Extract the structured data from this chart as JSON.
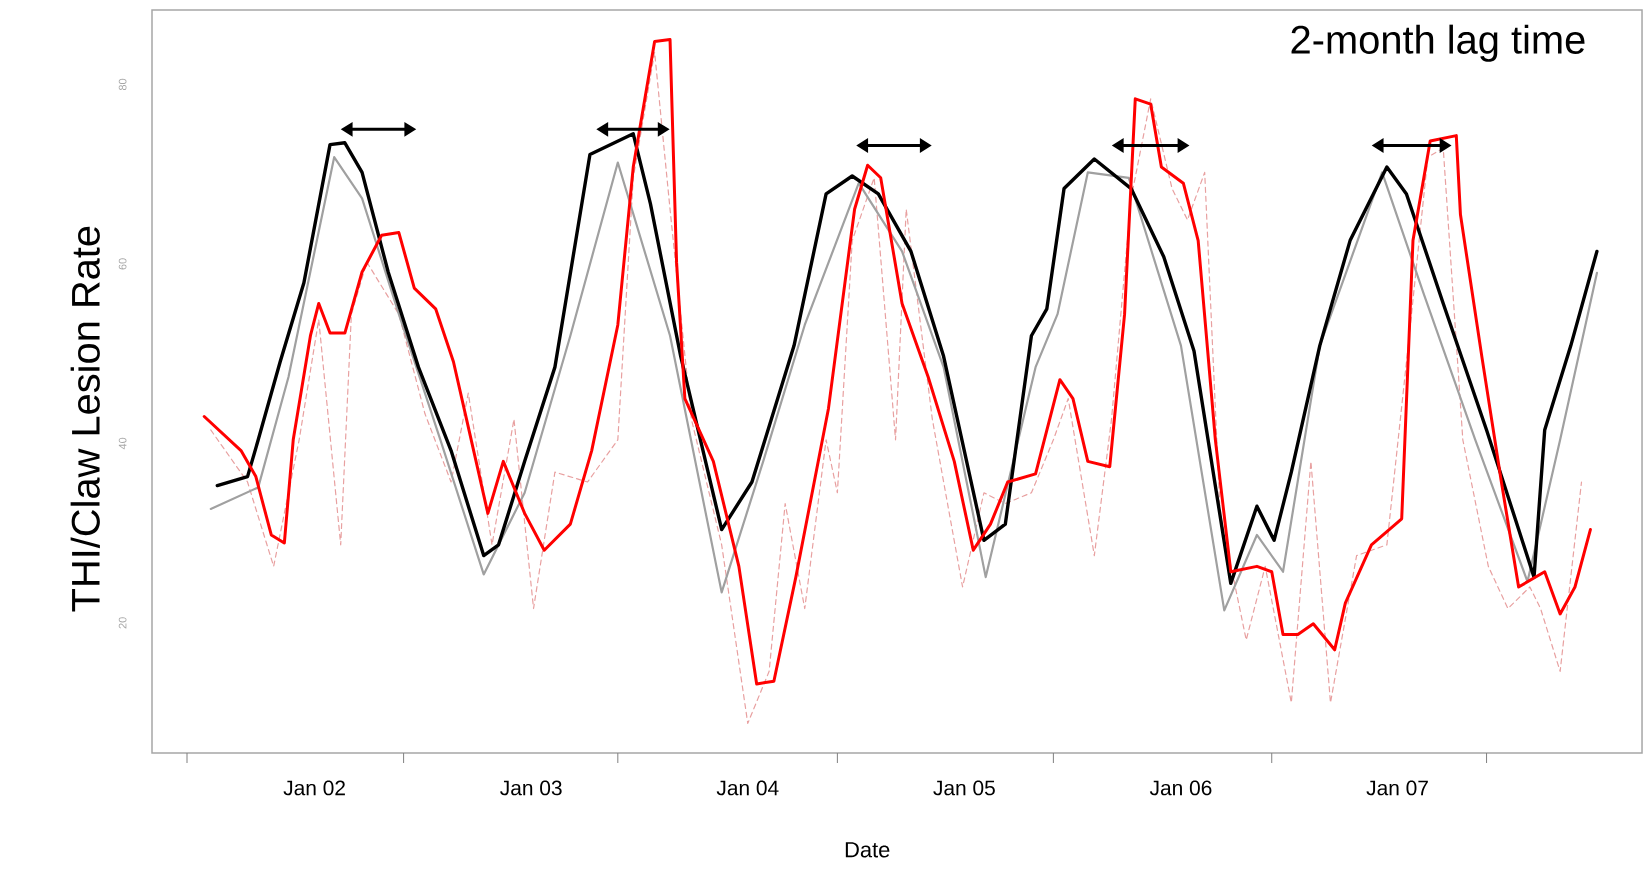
{
  "chart_data": {
    "type": "line",
    "xlabel": "Date",
    "ylabel": "THI/Claw Lesion Rate",
    "annotations": [
      "2-month lag time"
    ],
    "xlim": [
      "2001-04-02",
      "2008-02-17"
    ],
    "ylim": [
      5.5,
      88.3
    ],
    "xticks": [
      {
        "value": "2001-05-31",
        "label": null
      },
      {
        "value": "2002-01-01",
        "label": "Jan 02"
      },
      {
        "value": "2002-05-31",
        "label": null
      },
      {
        "value": "2003-01-01",
        "label": "Jan 03"
      },
      {
        "value": "2003-05-27",
        "label": null
      },
      {
        "value": "2004-01-01",
        "label": "Jan 04"
      },
      {
        "value": "2004-05-31",
        "label": null
      },
      {
        "value": "2005-01-01",
        "label": "Jan 05"
      },
      {
        "value": "2005-05-31",
        "label": null
      },
      {
        "value": "2006-01-01",
        "label": "Jan 06"
      },
      {
        "value": "2006-06-03",
        "label": null
      },
      {
        "value": "2007-01-01",
        "label": "Jan 07"
      },
      {
        "value": "2007-05-31",
        "label": null
      }
    ],
    "yticks": [
      20,
      40,
      60,
      80
    ],
    "marker": "none",
    "series": [
      {
        "color": "#e8a0a0",
        "line_style": "dashed",
        "x": [
          "2001-07-10",
          "2001-09-10",
          "2001-10-24",
          "2001-12-06",
          "2002-01-08",
          "2002-02-14",
          "2002-03-04",
          "2002-03-30",
          "2002-05-23",
          "2002-07-06",
          "2002-08-19",
          "2002-09-17",
          "2002-10-27",
          "2002-12-03",
          "2003-01-05",
          "2003-02-10",
          "2003-04-06",
          "2003-05-27",
          "2003-06-22",
          "2003-07-28",
          "2003-08-23",
          "2003-09-28",
          "2003-11-18",
          "2004-01-01",
          "2004-02-06",
          "2004-03-04",
          "2004-04-06",
          "2004-05-12",
          "2004-05-31",
          "2004-06-25",
          "2004-08-01",
          "2004-09-06",
          "2004-09-24",
          "2004-11-07",
          "2004-12-28",
          "2005-02-03",
          "2005-03-11",
          "2005-04-24",
          "2005-05-31",
          "2005-06-25",
          "2005-08-08",
          "2005-09-06",
          "2005-10-09",
          "2005-11-11",
          "2005-12-17",
          "2006-01-12",
          "2006-02-10",
          "2006-03-08",
          "2006-04-21",
          "2006-05-23",
          "2006-07-06",
          "2006-08-08",
          "2006-09-10",
          "2006-10-24",
          "2006-12-14",
          "2007-01-19",
          "2007-02-21",
          "2007-03-19",
          "2007-04-21",
          "2007-06-03",
          "2007-07-06",
          "2007-08-12",
          "2007-08-30",
          "2007-10-02",
          "2007-11-07"
        ],
        "values": [
          41.5,
          35.7,
          26.3,
          40.4,
          53.8,
          28.7,
          54.4,
          60.2,
          54.4,
          43.3,
          35.7,
          45.6,
          28.7,
          42.7,
          21.6,
          36.8,
          35.7,
          40.4,
          69.6,
          83.6,
          66.1,
          42.7,
          28.7,
          8.8,
          14.6,
          33.3,
          21.6,
          40.4,
          34.5,
          62.6,
          69.6,
          40.4,
          66.1,
          42.7,
          24,
          34.5,
          33.3,
          34.5,
          40.4,
          45,
          27.5,
          42.7,
          67.3,
          78.4,
          68.4,
          64.9,
          70.2,
          32.2,
          18.1,
          26.3,
          11.1,
          38,
          11.1,
          27.5,
          28.7,
          50.9,
          71.9,
          72.9,
          40.4,
          26.3,
          21.6,
          24,
          21.6,
          14.6,
          35.7
        ]
      },
      {
        "color": "#a0a0a0",
        "x": [
          "2001-07-10",
          "2001-09-28",
          "2001-11-18",
          "2002-02-03",
          "2002-03-22",
          "2002-05-23",
          "2002-08-01",
          "2002-10-13",
          "2002-12-21",
          "2003-03-08",
          "2003-05-27",
          "2003-08-23",
          "2003-11-18",
          "2004-01-27",
          "2004-04-06",
          "2004-07-06",
          "2004-09-17",
          "2004-11-26",
          "2005-02-06",
          "2005-05-01",
          "2005-06-07",
          "2005-07-28",
          "2005-10-05",
          "2006-01-01",
          "2006-03-15",
          "2006-05-09",
          "2006-06-22",
          "2006-08-23",
          "2006-12-06",
          "2007-02-14",
          "2007-05-12",
          "2007-08-08",
          "2007-10-02",
          "2007-12-03"
        ],
        "values": [
          32.7,
          35.1,
          47.4,
          71.9,
          67.3,
          54.4,
          40.4,
          25.4,
          34.5,
          52,
          71.3,
          52,
          23.4,
          38,
          53.2,
          69,
          61.4,
          48.5,
          25.1,
          48.5,
          54.4,
          70.2,
          69.6,
          50.9,
          21.4,
          29.8,
          25.7,
          50.9,
          70.2,
          56.7,
          40.4,
          24.6,
          40.4,
          59
        ]
      },
      {
        "color": "#000000",
        "x": [
          "2001-07-21",
          "2001-09-10",
          "2001-09-28",
          "2001-11-04",
          "2001-12-14",
          "2002-01-27",
          "2002-02-21",
          "2002-03-22",
          "2002-05-05",
          "2002-06-25",
          "2002-08-19",
          "2002-10-13",
          "2002-11-07",
          "2002-12-21",
          "2003-02-10",
          "2003-04-10",
          "2003-06-22",
          "2003-07-21",
          "2003-09-10",
          "2003-11-18",
          "2004-01-08",
          "2004-03-19",
          "2004-05-12",
          "2004-06-25",
          "2004-08-08",
          "2004-10-02",
          "2004-11-26",
          "2005-02-03",
          "2005-03-11",
          "2005-04-24",
          "2005-05-20",
          "2005-06-18",
          "2005-08-08",
          "2005-10-09",
          "2005-12-03",
          "2006-01-23",
          "2006-03-26",
          "2006-05-09",
          "2006-06-07",
          "2006-07-06",
          "2006-08-23",
          "2006-10-13",
          "2006-12-14",
          "2007-01-16",
          "2007-03-19",
          "2007-05-31",
          "2007-08-19",
          "2007-09-06",
          "2007-10-20",
          "2007-12-03"
        ],
        "values": [
          35.3,
          36.3,
          40.4,
          49.1,
          57.9,
          73.3,
          73.5,
          70.2,
          59.1,
          48.5,
          39.2,
          27.5,
          28.7,
          38,
          48.5,
          72.2,
          74.5,
          66.7,
          49.7,
          30.4,
          35.7,
          50.9,
          67.8,
          69.8,
          67.8,
          61.4,
          49.7,
          29.2,
          31,
          52,
          55,
          68.4,
          71.7,
          68.4,
          60.8,
          50.3,
          24.4,
          33,
          29.2,
          36.8,
          50.9,
          62.6,
          70.8,
          67.8,
          55.6,
          41.5,
          25.1,
          41.5,
          50.9,
          61.4
        ]
      },
      {
        "color": "#ff0000",
        "x": [
          "2001-06-29",
          "2001-08-30",
          "2001-09-24",
          "2001-10-20",
          "2001-11-11",
          "2001-11-26",
          "2001-12-25",
          "2002-01-08",
          "2002-01-27",
          "2002-02-21",
          "2002-03-22",
          "2002-04-24",
          "2002-05-23",
          "2002-06-18",
          "2002-07-24",
          "2002-08-23",
          "2002-09-14",
          "2002-10-20",
          "2002-11-15",
          "2002-12-21",
          "2003-01-23",
          "2003-03-08",
          "2003-04-13",
          "2003-05-27",
          "2003-06-22",
          "2003-07-28",
          "2003-08-23",
          "2003-09-03",
          "2003-09-17",
          "2003-11-04",
          "2003-12-17",
          "2004-01-16",
          "2004-02-14",
          "2004-03-22",
          "2004-05-16",
          "2004-06-29",
          "2004-07-21",
          "2004-08-12",
          "2004-09-17",
          "2004-10-31",
          "2004-12-14",
          "2005-01-16",
          "2005-02-14",
          "2005-03-15",
          "2005-05-01",
          "2005-06-11",
          "2005-07-03",
          "2005-07-28",
          "2005-09-03",
          "2005-09-28",
          "2005-10-16",
          "2005-11-11",
          "2005-11-29",
          "2006-01-05",
          "2006-01-30",
          "2006-02-28",
          "2006-03-26",
          "2006-05-09",
          "2006-06-03",
          "2006-06-22",
          "2006-07-17",
          "2006-08-12",
          "2006-09-17",
          "2006-10-05",
          "2006-11-18",
          "2007-01-08",
          "2007-01-27",
          "2007-02-25",
          "2007-04-10",
          "2007-04-17",
          "2007-05-23",
          "2007-06-25",
          "2007-07-24",
          "2007-09-06",
          "2007-10-02",
          "2007-10-27",
          "2007-11-22"
        ],
        "values": [
          43,
          39.2,
          36.3,
          29.8,
          28.9,
          40.4,
          52,
          55.6,
          52.3,
          52.3,
          59.1,
          63.2,
          63.5,
          57.3,
          55,
          49.1,
          42.7,
          32.2,
          38,
          32.2,
          28.1,
          31,
          39.2,
          53.2,
          70.8,
          84.8,
          85,
          60.2,
          45,
          38,
          26.3,
          13.2,
          13.5,
          25.1,
          43.9,
          66.1,
          71,
          69.6,
          55.6,
          47.4,
          38,
          28.1,
          31,
          35.7,
          36.6,
          47.1,
          45,
          38,
          37.4,
          54.4,
          78.4,
          77.8,
          70.8,
          69,
          62.6,
          40.4,
          25.7,
          26.3,
          25.7,
          18.7,
          18.7,
          19.9,
          17,
          22.2,
          28.7,
          31.6,
          62.6,
          73.7,
          74.3,
          65.5,
          49.7,
          35.7,
          24,
          25.7,
          21,
          24,
          30.4
        ]
      }
    ]
  }
}
